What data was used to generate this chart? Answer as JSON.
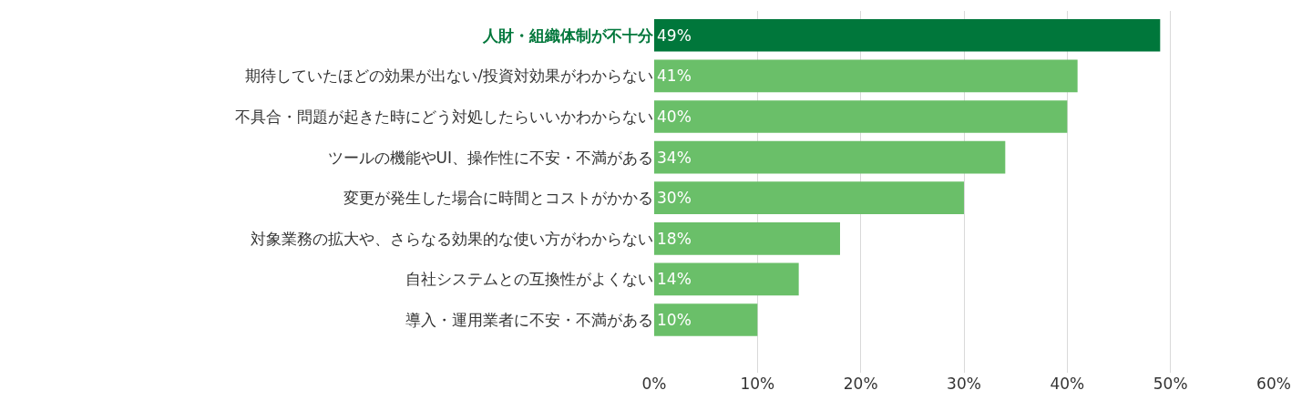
{
  "chart_data": {
    "type": "bar",
    "orientation": "horizontal",
    "categories": [
      "人財・組織体制が不十分",
      "期待していたほどの効果が出ない/投資対効果がわからない",
      "不具合・問題が起きた時にどう対処したらいいかわからない",
      "ツールの機能やUI、操作性に不安・不満がある",
      "変更が発生した場合に時間とコストがかかる",
      "対象業務の拡大や、さらなる効果的な使い方がわからない",
      "自社システムとの互換性がよくない",
      "導入・運用業者に不安・不満がある"
    ],
    "values": [
      49,
      41,
      40,
      34,
      30,
      18,
      14,
      10
    ],
    "value_labels": [
      "49%",
      "41%",
      "40%",
      "34%",
      "30%",
      "18%",
      "14%",
      "10%"
    ],
    "color": "#6abf69",
    "colors": [
      "#00773b",
      "#6abf69",
      "#6abf69",
      "#6abf69",
      "#6abf69",
      "#6abf69",
      "#6abf69",
      "#6abf69"
    ],
    "xlim": [
      0,
      60
    ],
    "xticks": [
      {
        "value": 0,
        "label": "0%"
      },
      {
        "value": 10,
        "label": "10%"
      },
      {
        "value": 20,
        "label": "20%"
      },
      {
        "value": 30,
        "label": "30%"
      },
      {
        "value": 40,
        "label": "40%"
      },
      {
        "value": 50,
        "label": "50%"
      },
      {
        "value": 60,
        "label": "60%"
      }
    ],
    "grid": "x",
    "legend": false
  }
}
